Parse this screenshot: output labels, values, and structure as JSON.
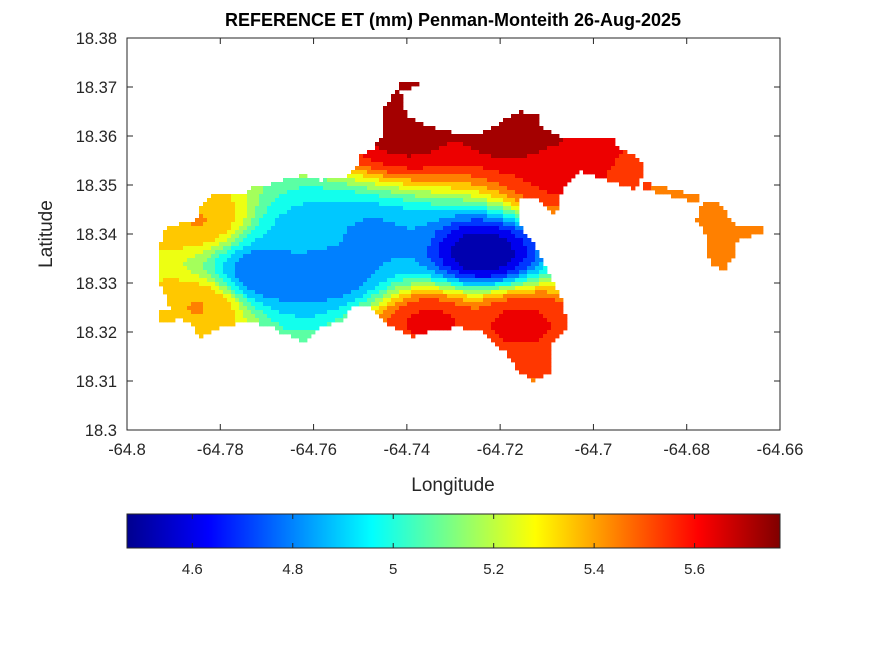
{
  "chart_data": {
    "type": "heatmap",
    "title": "REFERENCE ET (mm) Penman-Monteith 26-Aug-2025",
    "xlabel": "Longitude",
    "ylabel": "Latitude",
    "xlim": [
      -64.8,
      -64.66
    ],
    "ylim": [
      18.3,
      18.38
    ],
    "xticks": [
      -64.8,
      -64.78,
      -64.76,
      -64.74,
      -64.72,
      -64.7,
      -64.68,
      -64.66
    ],
    "yticks": [
      18.3,
      18.31,
      18.32,
      18.33,
      18.34,
      18.35,
      18.36,
      18.37,
      18.38
    ],
    "xtick_labels": [
      "-64.8",
      "-64.78",
      "-64.76",
      "-64.74",
      "-64.72",
      "-64.7",
      "-64.68",
      "-64.66"
    ],
    "ytick_labels": [
      "18.3",
      "18.31",
      "18.32",
      "18.33",
      "18.34",
      "18.35",
      "18.36",
      "18.37",
      "18.38"
    ],
    "colormap": "jet",
    "colorbar": {
      "orientation": "horizontal",
      "location": "below",
      "range": [
        4.47,
        5.77
      ],
      "ticks": [
        4.6,
        4.8,
        5.0,
        5.2,
        5.4,
        5.6
      ],
      "tick_labels": [
        "4.6",
        "4.8",
        "5",
        "5.2",
        "5.4",
        "5.6"
      ]
    },
    "grid": false,
    "units": "mm",
    "value_range": [
      4.47,
      5.77
    ],
    "features": [
      {
        "label": "minimum",
        "lon": -64.724,
        "lat": 18.336,
        "value": 4.5
      },
      {
        "label": "low",
        "lon": -64.77,
        "lat": 18.332,
        "value": 4.75
      },
      {
        "label": "low",
        "lon": -64.757,
        "lat": 18.333,
        "value": 4.75
      },
      {
        "label": "low",
        "lon": -64.748,
        "lat": 18.339,
        "value": 4.82
      },
      {
        "label": "low",
        "lon": -64.761,
        "lat": 18.34,
        "value": 4.9
      },
      {
        "label": "high",
        "lon": -64.74,
        "lat": 18.36,
        "value": 5.7
      },
      {
        "label": "high",
        "lon": -64.743,
        "lat": 18.369,
        "value": 5.75
      },
      {
        "label": "high",
        "lon": -64.716,
        "lat": 18.361,
        "value": 5.75
      },
      {
        "label": "high",
        "lon": -64.735,
        "lat": 18.322,
        "value": 5.6
      },
      {
        "label": "high",
        "lon": -64.716,
        "lat": 18.322,
        "value": 5.6
      },
      {
        "label": "high",
        "lon": -64.707,
        "lat": 18.352,
        "value": 5.6
      },
      {
        "label": "mid",
        "lon": -64.785,
        "lat": 18.325,
        "value": 5.4
      },
      {
        "label": "mid",
        "lon": -64.785,
        "lat": 18.343,
        "value": 5.4
      },
      {
        "label": "mid",
        "lon": -64.675,
        "lat": 18.34,
        "value": 5.45
      }
    ]
  },
  "colors": {
    "axes": "#262626",
    "background": "#ffffff"
  }
}
